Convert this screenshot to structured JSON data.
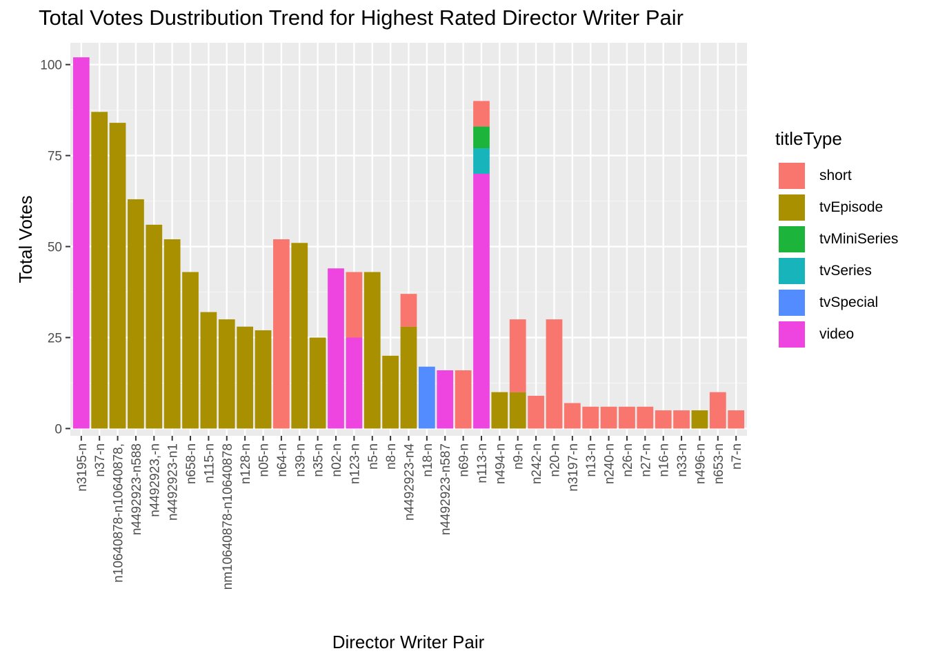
{
  "chart_data": {
    "type": "bar",
    "stacked": true,
    "title": "Total Votes Dustribution Trend for Highest Rated Director Writer Pair",
    "xlabel": "Director Writer Pair",
    "ylabel": "Total Votes",
    "ylim": [
      -2,
      106
    ],
    "yticks": [
      0,
      25,
      50,
      75,
      100
    ],
    "grid": true,
    "legend_position": "right",
    "legend_title": "titleType",
    "colors": {
      "short": "#F8766D",
      "tvEpisode": "#A89000",
      "tvMiniSeries": "#1CB43B",
      "tvSeries": "#17B5BB",
      "tvSpecial": "#528CFF",
      "video": "#EE45E0"
    },
    "series_order": [
      "short",
      "tvEpisode",
      "tvMiniSeries",
      "tvSeries",
      "tvSpecial",
      "video"
    ],
    "categories": [
      {
        "label": "n3195-n",
        "segments": [
          {
            "type": "video",
            "value": 102
          }
        ]
      },
      {
        "label": "n37-n",
        "segments": [
          {
            "type": "tvEpisode",
            "value": 87
          }
        ]
      },
      {
        "label": "n10640878-n10640878,",
        "segments": [
          {
            "type": "tvEpisode",
            "value": 84
          }
        ]
      },
      {
        "label": "n4492923-n588",
        "segments": [
          {
            "type": "tvEpisode",
            "value": 63
          }
        ]
      },
      {
        "label": "n4492923,-n",
        "segments": [
          {
            "type": "tvEpisode",
            "value": 56
          }
        ]
      },
      {
        "label": "n4492923-n1",
        "segments": [
          {
            "type": "tvEpisode",
            "value": 52
          }
        ]
      },
      {
        "label": "n658-n",
        "segments": [
          {
            "type": "tvEpisode",
            "value": 43
          }
        ]
      },
      {
        "label": "n115-n",
        "segments": [
          {
            "type": "tvEpisode",
            "value": 32
          }
        ]
      },
      {
        "label": "nm10640878-n10640878",
        "segments": [
          {
            "type": "tvEpisode",
            "value": 30
          }
        ]
      },
      {
        "label": "n128-n",
        "segments": [
          {
            "type": "tvEpisode",
            "value": 28
          }
        ]
      },
      {
        "label": "n05-n",
        "segments": [
          {
            "type": "tvEpisode",
            "value": 27
          }
        ]
      },
      {
        "label": "n64-n",
        "segments": [
          {
            "type": "short",
            "value": 52
          }
        ]
      },
      {
        "label": "n39-n",
        "segments": [
          {
            "type": "tvEpisode",
            "value": 51
          }
        ]
      },
      {
        "label": "n35-n",
        "segments": [
          {
            "type": "tvEpisode",
            "value": 25
          }
        ]
      },
      {
        "label": "n02-n",
        "segments": [
          {
            "type": "video",
            "value": 44
          }
        ]
      },
      {
        "label": "n123-n",
        "segments": [
          {
            "type": "video",
            "value": 25
          },
          {
            "type": "short",
            "value": 18
          }
        ]
      },
      {
        "label": "n5-n",
        "segments": [
          {
            "type": "tvEpisode",
            "value": 43
          }
        ]
      },
      {
        "label": "n8-n",
        "segments": [
          {
            "type": "tvEpisode",
            "value": 20
          }
        ]
      },
      {
        "label": "n4492923-n4",
        "segments": [
          {
            "type": "tvEpisode",
            "value": 28
          },
          {
            "type": "short",
            "value": 9
          }
        ]
      },
      {
        "label": "n18-n",
        "segments": [
          {
            "type": "tvSpecial",
            "value": 17
          }
        ]
      },
      {
        "label": "n4492923-n587",
        "segments": [
          {
            "type": "video",
            "value": 16
          }
        ]
      },
      {
        "label": "n69-n",
        "segments": [
          {
            "type": "short",
            "value": 16
          }
        ]
      },
      {
        "label": "n113-n",
        "segments": [
          {
            "type": "video",
            "value": 70
          },
          {
            "type": "tvSeries",
            "value": 7
          },
          {
            "type": "tvMiniSeries",
            "value": 6
          },
          {
            "type": "short",
            "value": 7
          }
        ]
      },
      {
        "label": "n494-n",
        "segments": [
          {
            "type": "tvEpisode",
            "value": 10
          }
        ]
      },
      {
        "label": "n9-n",
        "segments": [
          {
            "type": "tvEpisode",
            "value": 10
          },
          {
            "type": "short",
            "value": 20
          }
        ]
      },
      {
        "label": "n242-n",
        "segments": [
          {
            "type": "short",
            "value": 9
          }
        ]
      },
      {
        "label": "n20-n",
        "segments": [
          {
            "type": "short",
            "value": 30
          }
        ]
      },
      {
        "label": "n3197-n",
        "segments": [
          {
            "type": "short",
            "value": 7
          }
        ]
      },
      {
        "label": "n13-n",
        "segments": [
          {
            "type": "short",
            "value": 6
          }
        ]
      },
      {
        "label": "n240-n",
        "segments": [
          {
            "type": "short",
            "value": 6
          }
        ]
      },
      {
        "label": "n26-n",
        "segments": [
          {
            "type": "short",
            "value": 6
          }
        ]
      },
      {
        "label": "n27-n",
        "segments": [
          {
            "type": "short",
            "value": 6
          }
        ]
      },
      {
        "label": "n16-n",
        "segments": [
          {
            "type": "short",
            "value": 5
          }
        ]
      },
      {
        "label": "n33-n",
        "segments": [
          {
            "type": "short",
            "value": 5
          }
        ]
      },
      {
        "label": "n496-n",
        "segments": [
          {
            "type": "tvEpisode",
            "value": 5
          }
        ]
      },
      {
        "label": "n653-n",
        "segments": [
          {
            "type": "short",
            "value": 10
          }
        ]
      },
      {
        "label": "n7-n",
        "segments": [
          {
            "type": "short",
            "value": 5
          }
        ]
      }
    ]
  }
}
